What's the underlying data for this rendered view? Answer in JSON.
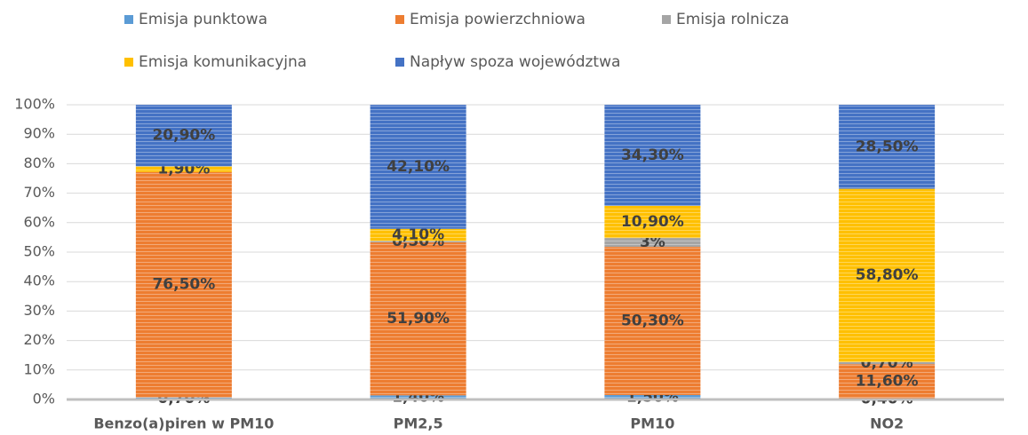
{
  "chart_data": {
    "type": "stacked_bar",
    "categories": [
      "Benzo(a)piren w PM10",
      "PM2,5",
      "PM10",
      "NO2"
    ],
    "series": [
      {
        "name": "Emisja punktowa",
        "color": "#5b9bd5",
        "values": [
          0.7,
          1.4,
          1.5,
          0.4
        ],
        "value_labels": [
          "0,70%",
          "1,40%",
          "1,50%",
          "0,40%"
        ]
      },
      {
        "name": "Emisja powierzchniowa",
        "color": "#ed7d31",
        "values": [
          76.5,
          51.9,
          50.3,
          11.6
        ],
        "value_labels": [
          "76,50%",
          "51,90%",
          "50,30%",
          "11,60%"
        ]
      },
      {
        "name": "Emisja rolnicza",
        "color": "#a5a5a5",
        "values": [
          null,
          0.5,
          3,
          0.7
        ],
        "value_labels": [
          null,
          "0,50%",
          "3%",
          "0,70%"
        ]
      },
      {
        "name": "Emisja komunikacyjna",
        "color": "#ffc000",
        "values": [
          1.9,
          4.1,
          10.9,
          58.8
        ],
        "value_labels": [
          "1,90%",
          "4,10%",
          "10,90%",
          "58,80%"
        ]
      },
      {
        "name": "Napływ spoza województwa",
        "color": "#4472c4",
        "values": [
          20.9,
          42.1,
          34.3,
          28.5
        ],
        "value_labels": [
          "20,90%",
          "42,10%",
          "34,30%",
          "28,50%"
        ]
      }
    ],
    "ylim": [
      0,
      100
    ],
    "yticks": [
      {
        "value": 0,
        "label": "0%"
      },
      {
        "value": 10,
        "label": "10%"
      },
      {
        "value": 20,
        "label": "20%"
      },
      {
        "value": 30,
        "label": "30%"
      },
      {
        "value": 40,
        "label": "40%"
      },
      {
        "value": 50,
        "label": "50%"
      },
      {
        "value": 60,
        "label": "60%"
      },
      {
        "value": 70,
        "label": "70%"
      },
      {
        "value": 80,
        "label": "80%"
      },
      {
        "value": 90,
        "label": "90%"
      },
      {
        "value": 100,
        "label": "100%"
      }
    ],
    "grid": true,
    "legend": "top"
  }
}
